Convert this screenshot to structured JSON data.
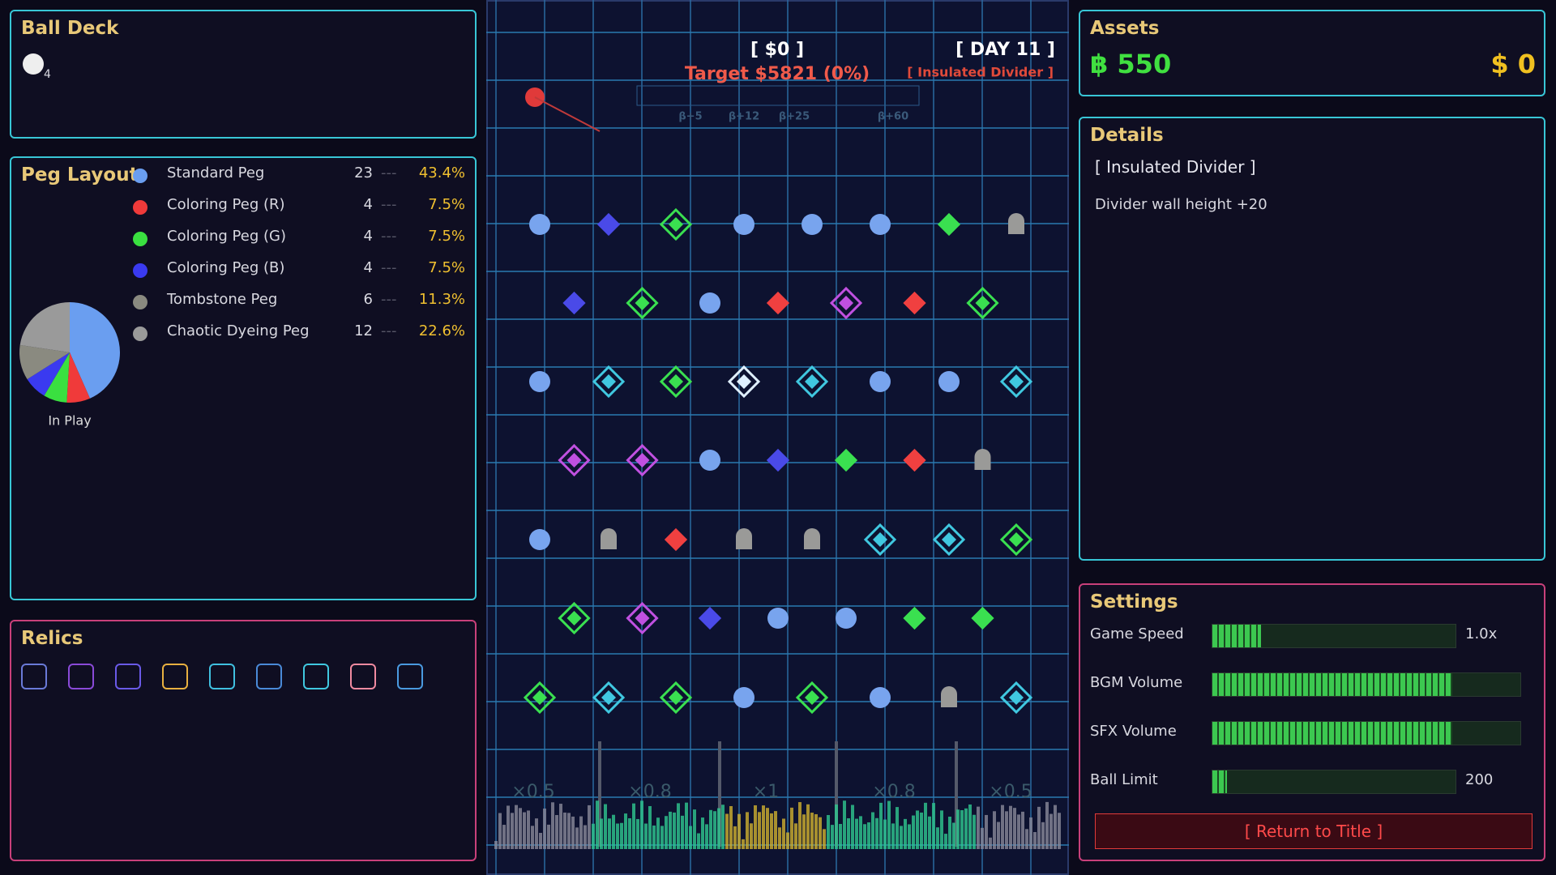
{
  "ball_deck": {
    "title": "Ball Deck",
    "count": "4"
  },
  "peg_layout": {
    "title": "Peg Layout",
    "pie_label": "In Play",
    "rows": [
      {
        "name": "Standard Peg",
        "count": 23,
        "share": "43.4%",
        "color": "#6a9ef0"
      },
      {
        "name": "Coloring Peg (R)",
        "count": 4,
        "share": "7.5%",
        "color": "#f03a3a"
      },
      {
        "name": "Coloring Peg (G)",
        "count": 4,
        "share": "7.5%",
        "color": "#3ae040"
      },
      {
        "name": "Coloring Peg (B)",
        "count": 4,
        "share": "7.5%",
        "color": "#3a3af0"
      },
      {
        "name": "Tombstone Peg",
        "count": 6,
        "share": "11.3%",
        "color": "#8a8a80"
      },
      {
        "name": "Chaotic Dyeing Peg",
        "count": 12,
        "share": "22.6%",
        "color": "#9a9a9a"
      }
    ]
  },
  "relics": {
    "title": "Relics"
  },
  "board": {
    "money": "[ $0 ]",
    "target": "Target $5821 (0%)",
    "day": "[ DAY 11 ]",
    "modifier": "[ Insulated Divider ]",
    "bucket_bonuses": [
      "β+5",
      "β+12",
      "β+25",
      "β+60"
    ],
    "multipliers": [
      "×0.5",
      "×0.8",
      "×1",
      "×0.8",
      "×0.5"
    ]
  },
  "assets": {
    "title": "Assets",
    "coins": "฿ 550",
    "dollars": "$ 0"
  },
  "details": {
    "title": "Details",
    "item": "[ Insulated Divider ]",
    "description": "Divider wall height +20"
  },
  "settings": {
    "title": "Settings",
    "items": [
      {
        "label": "Game Speed",
        "value": "1.0x",
        "level": 0.2
      },
      {
        "label": "BGM Volume",
        "level": 0.78
      },
      {
        "label": "SFX Volume",
        "level": 0.78
      },
      {
        "label": "Ball Limit",
        "value": "200",
        "level": 0.06
      }
    ],
    "button": "[ Return to Title ]"
  }
}
